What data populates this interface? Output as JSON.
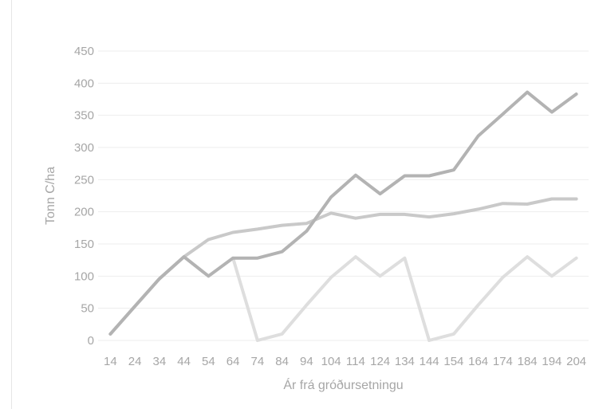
{
  "chart_data": {
    "type": "line",
    "title": "",
    "xlabel": "Ár frá gróðursetningu",
    "ylabel": "Tonn C/ha",
    "ylim": [
      0,
      450
    ],
    "yticks": [
      0,
      50,
      100,
      150,
      200,
      250,
      300,
      350,
      400,
      450
    ],
    "grid": true,
    "legend": "none",
    "categories": [
      "14",
      "24",
      "34",
      "44",
      "54",
      "64",
      "74",
      "84",
      "94",
      "104",
      "114",
      "124",
      "134",
      "144",
      "154",
      "164",
      "174",
      "184",
      "194",
      "204"
    ],
    "series": [
      {
        "color": "#b3b3b3",
        "values": [
          10,
          53,
          96,
          130,
          100,
          128,
          128,
          138,
          170,
          223,
          257,
          228,
          256,
          256,
          265,
          318,
          352,
          386,
          355,
          383
        ]
      },
      {
        "color": "#c9c9c9",
        "values": [
          10,
          53,
          96,
          130,
          157,
          168,
          173,
          179,
          182,
          198,
          190,
          196,
          196,
          192,
          197,
          204,
          213,
          212,
          220,
          220
        ]
      },
      {
        "color": "#dedede",
        "values": [
          10,
          53,
          96,
          130,
          100,
          128,
          0,
          10,
          55,
          98,
          130,
          100,
          128,
          0,
          10,
          55,
          98,
          130,
          100,
          128
        ]
      }
    ]
  }
}
